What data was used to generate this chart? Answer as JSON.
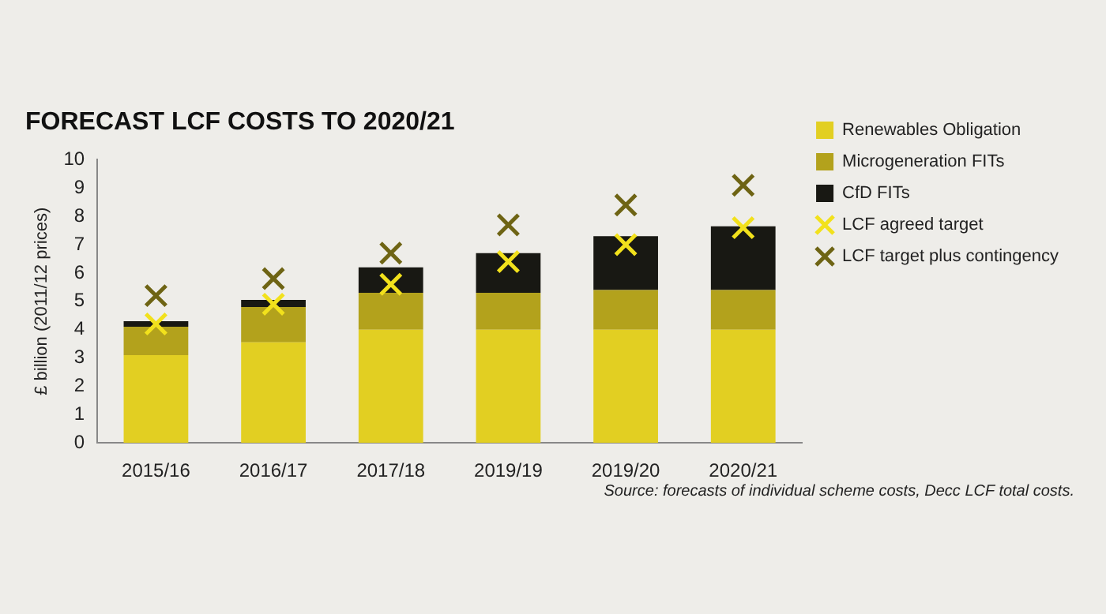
{
  "chart_data": {
    "type": "bar",
    "title": "FORECAST LCF COSTS TO 2020/21",
    "ylabel": "£ billion (2011/12 prices)",
    "categories": [
      "2015/16",
      "2016/17",
      "2017/18",
      "2019/19",
      "2019/20",
      "2020/21"
    ],
    "stacked": true,
    "ylim": [
      0,
      10
    ],
    "yticks": [
      0,
      1,
      2,
      3,
      4,
      5,
      6,
      7,
      8,
      9,
      10
    ],
    "grid": false,
    "legend": "right",
    "marker": "cross",
    "series": [
      {
        "name": "Renewables Obligation",
        "color": "#e2cf22",
        "values": [
          3.1,
          3.55,
          4.0,
          4.0,
          4.0,
          4.0
        ]
      },
      {
        "name": "Microgeneration FITs",
        "color": "#b3a21c",
        "values": [
          1.0,
          1.25,
          1.3,
          1.3,
          1.4,
          1.4
        ]
      },
      {
        "name": "CfD FITs",
        "color": "#181813",
        "values": [
          0.2,
          0.25,
          0.9,
          1.4,
          1.9,
          2.25
        ]
      },
      {
        "name": "LCF agreed target",
        "type": "scatter",
        "color": "#f2e11c",
        "values": [
          4.2,
          4.9,
          5.6,
          6.4,
          7.0,
          7.6
        ]
      },
      {
        "name": "LCF target plus contingency",
        "type": "scatter",
        "color": "#6e6414",
        "values": [
          5.2,
          5.8,
          6.7,
          7.7,
          8.4,
          9.1
        ]
      }
    ],
    "annotations": [
      "Source: forecasts of individual scheme costs, Decc LCF total costs."
    ]
  }
}
